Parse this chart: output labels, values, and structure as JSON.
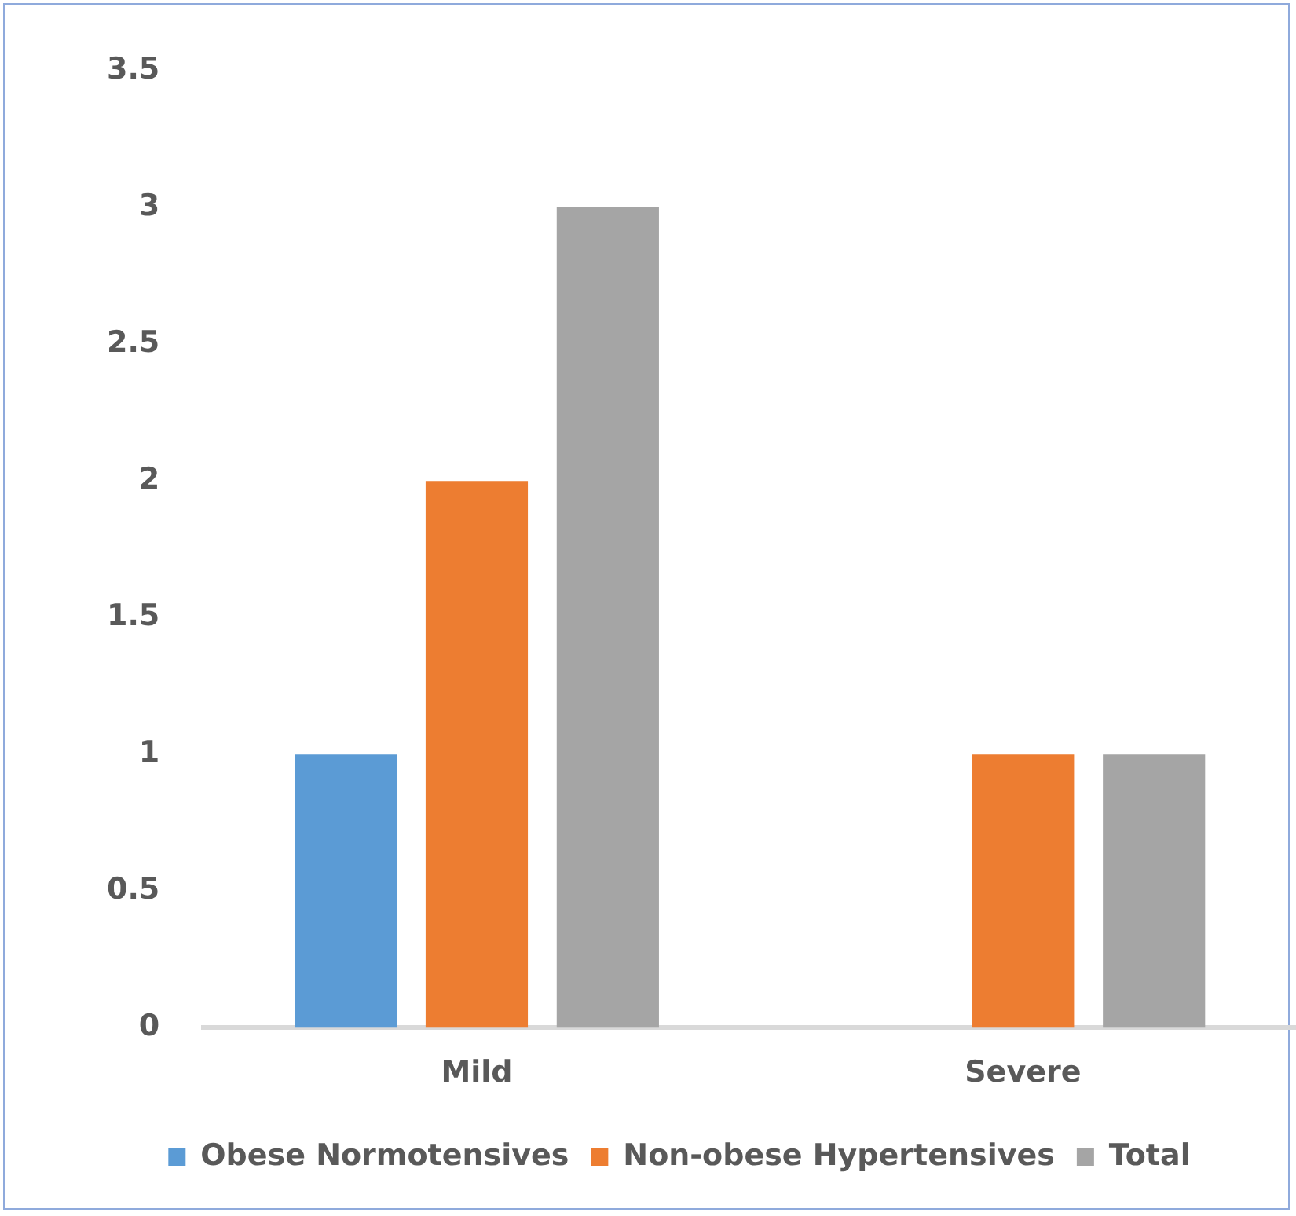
{
  "chart_data": {
    "type": "bar",
    "categories": [
      "Mild",
      "Severe"
    ],
    "series": [
      {
        "name": "Obese Normotensives",
        "color": "#5b9bd5",
        "values": [
          1,
          0
        ]
      },
      {
        "name": "Non-obese Hypertensives",
        "color": "#ed7d31",
        "values": [
          2,
          1
        ]
      },
      {
        "name": "Total",
        "color": "#a5a5a5",
        "values": [
          3,
          1
        ]
      }
    ],
    "ylim": [
      0,
      3.5
    ],
    "yticks": [
      0,
      0.5,
      1,
      1.5,
      2,
      2.5,
      3,
      3.5
    ],
    "grid": false,
    "legend": "bottom"
  }
}
